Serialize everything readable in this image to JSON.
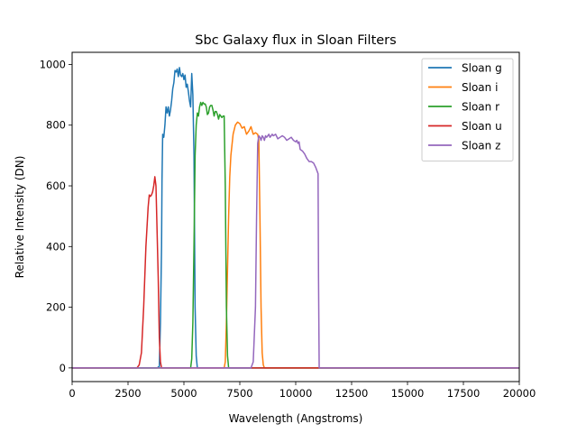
{
  "chart_data": {
    "type": "line",
    "title": "Sbc Galaxy flux in Sloan Filters",
    "xlabel": "Wavelength (Angstroms)",
    "ylabel": "Relative Intensity (DN)",
    "xlim": [
      0,
      20000
    ],
    "ylim": [
      -45,
      1040
    ],
    "xticks": [
      0,
      2500,
      5000,
      7500,
      10000,
      12500,
      15000,
      17500,
      20000
    ],
    "yticks": [
      0,
      200,
      400,
      600,
      800,
      1000
    ],
    "grid": false,
    "legend_position": "top-right",
    "series": [
      {
        "name": "Sloan g",
        "color": "#1f77b4",
        "points": [
          [
            0,
            0
          ],
          [
            3800,
            0
          ],
          [
            3900,
            5
          ],
          [
            3950,
            150
          ],
          [
            4000,
            400
          ],
          [
            4020,
            620
          ],
          [
            4050,
            770
          ],
          [
            4100,
            760
          ],
          [
            4150,
            800
          ],
          [
            4200,
            860
          ],
          [
            4250,
            840
          ],
          [
            4300,
            860
          ],
          [
            4350,
            830
          ],
          [
            4400,
            850
          ],
          [
            4450,
            880
          ],
          [
            4500,
            920
          ],
          [
            4550,
            940
          ],
          [
            4600,
            980
          ],
          [
            4650,
            975
          ],
          [
            4700,
            985
          ],
          [
            4750,
            960
          ],
          [
            4800,
            990
          ],
          [
            4850,
            965
          ],
          [
            4900,
            960
          ],
          [
            4950,
            970
          ],
          [
            5000,
            950
          ],
          [
            5050,
            965
          ],
          [
            5100,
            925
          ],
          [
            5150,
            935
          ],
          [
            5200,
            910
          ],
          [
            5250,
            880
          ],
          [
            5300,
            860
          ],
          [
            5350,
            970
          ],
          [
            5400,
            900
          ],
          [
            5450,
            700
          ],
          [
            5500,
            200
          ],
          [
            5550,
            40
          ],
          [
            5600,
            0
          ],
          [
            20000,
            0
          ]
        ]
      },
      {
        "name": "Sloan i",
        "color": "#ff7f0e",
        "points": [
          [
            0,
            0
          ],
          [
            6800,
            0
          ],
          [
            6850,
            20
          ],
          [
            6900,
            150
          ],
          [
            7000,
            500
          ],
          [
            7050,
            630
          ],
          [
            7100,
            700
          ],
          [
            7200,
            770
          ],
          [
            7300,
            800
          ],
          [
            7400,
            810
          ],
          [
            7500,
            805
          ],
          [
            7600,
            790
          ],
          [
            7700,
            795
          ],
          [
            7800,
            770
          ],
          [
            7900,
            780
          ],
          [
            8000,
            795
          ],
          [
            8100,
            770
          ],
          [
            8200,
            775
          ],
          [
            8300,
            770
          ],
          [
            8350,
            750
          ],
          [
            8400,
            500
          ],
          [
            8450,
            200
          ],
          [
            8500,
            50
          ],
          [
            8550,
            10
          ],
          [
            8600,
            0
          ],
          [
            20000,
            0
          ]
        ]
      },
      {
        "name": "Sloan r",
        "color": "#2ca02c",
        "points": [
          [
            0,
            0
          ],
          [
            5300,
            0
          ],
          [
            5350,
            30
          ],
          [
            5400,
            150
          ],
          [
            5450,
            400
          ],
          [
            5500,
            700
          ],
          [
            5550,
            800
          ],
          [
            5600,
            840
          ],
          [
            5650,
            830
          ],
          [
            5700,
            860
          ],
          [
            5750,
            875
          ],
          [
            5800,
            865
          ],
          [
            5850,
            875
          ],
          [
            5900,
            870
          ],
          [
            5950,
            870
          ],
          [
            6000,
            860
          ],
          [
            6050,
            835
          ],
          [
            6100,
            840
          ],
          [
            6150,
            860
          ],
          [
            6200,
            865
          ],
          [
            6250,
            865
          ],
          [
            6300,
            850
          ],
          [
            6350,
            830
          ],
          [
            6400,
            845
          ],
          [
            6450,
            845
          ],
          [
            6500,
            835
          ],
          [
            6550,
            820
          ],
          [
            6600,
            835
          ],
          [
            6650,
            830
          ],
          [
            6700,
            825
          ],
          [
            6750,
            830
          ],
          [
            6800,
            830
          ],
          [
            6850,
            600
          ],
          [
            6900,
            200
          ],
          [
            6950,
            40
          ],
          [
            7000,
            0
          ],
          [
            20000,
            0
          ]
        ]
      },
      {
        "name": "Sloan u",
        "color": "#d62728",
        "points": [
          [
            0,
            0
          ],
          [
            2900,
            0
          ],
          [
            3000,
            10
          ],
          [
            3100,
            50
          ],
          [
            3200,
            200
          ],
          [
            3300,
            400
          ],
          [
            3400,
            530
          ],
          [
            3450,
            570
          ],
          [
            3500,
            565
          ],
          [
            3550,
            570
          ],
          [
            3600,
            580
          ],
          [
            3650,
            600
          ],
          [
            3700,
            630
          ],
          [
            3750,
            600
          ],
          [
            3800,
            450
          ],
          [
            3850,
            300
          ],
          [
            3900,
            100
          ],
          [
            3950,
            20
          ],
          [
            4000,
            0
          ],
          [
            20000,
            0
          ]
        ]
      },
      {
        "name": "Sloan z",
        "color": "#9467bd",
        "points": [
          [
            0,
            0
          ],
          [
            8000,
            0
          ],
          [
            8100,
            20
          ],
          [
            8200,
            200
          ],
          [
            8250,
            500
          ],
          [
            8300,
            740
          ],
          [
            8350,
            765
          ],
          [
            8400,
            760
          ],
          [
            8450,
            750
          ],
          [
            8500,
            765
          ],
          [
            8550,
            760
          ],
          [
            8600,
            750
          ],
          [
            8650,
            765
          ],
          [
            8700,
            760
          ],
          [
            8750,
            765
          ],
          [
            8800,
            770
          ],
          [
            8850,
            760
          ],
          [
            8900,
            765
          ],
          [
            8950,
            770
          ],
          [
            9000,
            765
          ],
          [
            9100,
            770
          ],
          [
            9200,
            755
          ],
          [
            9300,
            760
          ],
          [
            9400,
            765
          ],
          [
            9500,
            760
          ],
          [
            9600,
            750
          ],
          [
            9700,
            755
          ],
          [
            9800,
            760
          ],
          [
            9900,
            750
          ],
          [
            10000,
            745
          ],
          [
            10050,
            750
          ],
          [
            10100,
            740
          ],
          [
            10150,
            745
          ],
          [
            10200,
            720
          ],
          [
            10300,
            715
          ],
          [
            10400,
            705
          ],
          [
            10500,
            690
          ],
          [
            10600,
            680
          ],
          [
            10700,
            680
          ],
          [
            10800,
            675
          ],
          [
            10900,
            660
          ],
          [
            10950,
            650
          ],
          [
            11000,
            640
          ],
          [
            11020,
            300
          ],
          [
            11050,
            0
          ],
          [
            20000,
            0
          ]
        ]
      }
    ]
  }
}
